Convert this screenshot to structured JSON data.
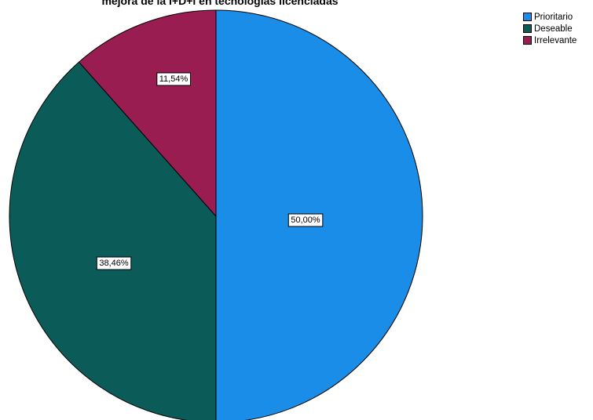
{
  "chart_data": {
    "type": "pie",
    "title": "mejora de la I+D+i en tecnologías licenciadas",
    "slices": [
      {
        "label": "Prioritario",
        "value": 50.0,
        "display": "50,00%",
        "color": "#1a8de8"
      },
      {
        "label": "Deseable",
        "value": 38.46,
        "display": "38,46%",
        "color": "#0b5c58"
      },
      {
        "label": "Irrelevante",
        "value": 11.54,
        "display": "11,54%",
        "color": "#9a1d52"
      }
    ],
    "legend": {
      "position": "top-right"
    },
    "start_angle": "12 o'clock",
    "direction": "clockwise"
  }
}
